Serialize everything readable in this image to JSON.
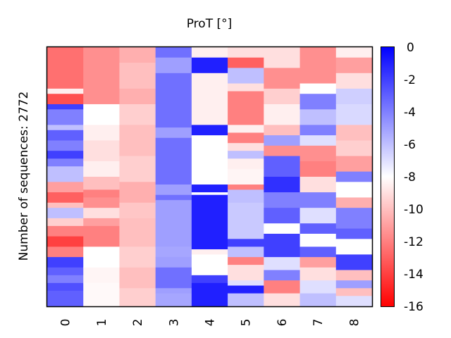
{
  "chart_data": {
    "type": "heatmap",
    "title": "ProT [°]",
    "xlabel": "",
    "ylabel": "Number of sequences: 2772",
    "x_categories": [
      "0",
      "1",
      "2",
      "3",
      "4",
      "5",
      "6",
      "7",
      "8"
    ],
    "n_rows": 2772,
    "colorbar": {
      "min": -16,
      "max": 0,
      "ticks": [
        "0",
        "-2",
        "-4",
        "-6",
        "-8",
        "-10",
        "-12",
        "-14",
        "-16"
      ],
      "tick_values": [
        0,
        -2,
        -4,
        -6,
        -8,
        -10,
        -12,
        -14,
        -16
      ],
      "colormap": "bwr_reversed",
      "low_color": "#ff0000",
      "mid_color": "#ffffff",
      "high_color": "#0000ff"
    },
    "columns": [
      {
        "name": "0",
        "segments": [
          [
            0.0,
            0.16,
            -12.5
          ],
          [
            0.16,
            0.18,
            -8.5
          ],
          [
            0.18,
            0.22,
            -13.5
          ],
          [
            0.22,
            0.24,
            -2
          ],
          [
            0.24,
            0.3,
            -4
          ],
          [
            0.3,
            0.32,
            -6
          ],
          [
            0.32,
            0.36,
            -3
          ],
          [
            0.36,
            0.4,
            -4
          ],
          [
            0.4,
            0.43,
            -2
          ],
          [
            0.43,
            0.46,
            -4
          ],
          [
            0.46,
            0.52,
            -6
          ],
          [
            0.52,
            0.56,
            -11
          ],
          [
            0.56,
            0.6,
            -13
          ],
          [
            0.6,
            0.62,
            -10
          ],
          [
            0.62,
            0.66,
            -6
          ],
          [
            0.66,
            0.69,
            -9.5
          ],
          [
            0.69,
            0.73,
            -12
          ],
          [
            0.73,
            0.77,
            -14
          ],
          [
            0.77,
            0.81,
            -12
          ],
          [
            0.81,
            0.85,
            -2
          ],
          [
            0.85,
            0.88,
            -3
          ],
          [
            0.88,
            0.91,
            -4
          ],
          [
            0.91,
            0.94,
            -2.5
          ],
          [
            0.94,
            1.0,
            -3
          ]
        ]
      },
      {
        "name": "1",
        "segments": [
          [
            0.0,
            0.22,
            -11.5
          ],
          [
            0.22,
            0.3,
            -8
          ],
          [
            0.3,
            0.36,
            -8.5
          ],
          [
            0.36,
            0.44,
            -9
          ],
          [
            0.44,
            0.5,
            -8.5
          ],
          [
            0.5,
            0.55,
            -10
          ],
          [
            0.55,
            0.58,
            -12
          ],
          [
            0.58,
            0.62,
            -11.5
          ],
          [
            0.62,
            0.66,
            -9
          ],
          [
            0.66,
            0.69,
            -11
          ],
          [
            0.69,
            0.77,
            -12
          ],
          [
            0.77,
            0.85,
            -8
          ],
          [
            0.85,
            0.91,
            -8.3
          ],
          [
            0.91,
            1.0,
            -8.2
          ]
        ]
      },
      {
        "name": "2",
        "segments": [
          [
            0.0,
            0.06,
            -10.5
          ],
          [
            0.06,
            0.16,
            -10
          ],
          [
            0.16,
            0.22,
            -10.5
          ],
          [
            0.22,
            0.3,
            -9.5
          ],
          [
            0.3,
            0.42,
            -10
          ],
          [
            0.42,
            0.52,
            -9.5
          ],
          [
            0.52,
            0.6,
            -10.5
          ],
          [
            0.6,
            0.66,
            -9.8
          ],
          [
            0.66,
            0.77,
            -10
          ],
          [
            0.77,
            0.85,
            -9.5
          ],
          [
            0.85,
            0.93,
            -10
          ],
          [
            0.93,
            1.0,
            -9.5
          ]
        ]
      },
      {
        "name": "3",
        "segments": [
          [
            0.0,
            0.04,
            -3.5
          ],
          [
            0.04,
            0.1,
            -5
          ],
          [
            0.1,
            0.31,
            -3.5
          ],
          [
            0.31,
            0.35,
            -5
          ],
          [
            0.35,
            0.53,
            -3.5
          ],
          [
            0.53,
            0.57,
            -5
          ],
          [
            0.57,
            0.59,
            -3.5
          ],
          [
            0.59,
            0.77,
            -5
          ],
          [
            0.77,
            0.81,
            -5.2
          ],
          [
            0.81,
            0.85,
            -5
          ],
          [
            0.85,
            0.93,
            -3.5
          ],
          [
            0.93,
            0.95,
            -5
          ],
          [
            0.95,
            1.0,
            -5.2
          ]
        ]
      },
      {
        "name": "4",
        "segments": [
          [
            0.0,
            0.04,
            -8.5
          ],
          [
            0.04,
            0.1,
            -1
          ],
          [
            0.1,
            0.3,
            -8.5
          ],
          [
            0.3,
            0.34,
            -1
          ],
          [
            0.34,
            0.53,
            -8
          ],
          [
            0.53,
            0.56,
            -1
          ],
          [
            0.56,
            0.57,
            -8
          ],
          [
            0.57,
            0.78,
            -1
          ],
          [
            0.78,
            0.8,
            -8.5
          ],
          [
            0.8,
            0.88,
            -8
          ],
          [
            0.88,
            0.91,
            -2
          ],
          [
            0.91,
            1.0,
            -1
          ]
        ]
      },
      {
        "name": "5",
        "segments": [
          [
            0.0,
            0.04,
            -9
          ],
          [
            0.04,
            0.08,
            -13
          ],
          [
            0.08,
            0.14,
            -6
          ],
          [
            0.14,
            0.17,
            -9
          ],
          [
            0.17,
            0.3,
            -12
          ],
          [
            0.3,
            0.33,
            -8.5
          ],
          [
            0.33,
            0.37,
            -12
          ],
          [
            0.37,
            0.4,
            -9
          ],
          [
            0.4,
            0.43,
            -6
          ],
          [
            0.43,
            0.47,
            -8.5
          ],
          [
            0.47,
            0.53,
            -8.3
          ],
          [
            0.53,
            0.55,
            -12
          ],
          [
            0.55,
            0.6,
            -6
          ],
          [
            0.6,
            0.74,
            -6.3
          ],
          [
            0.74,
            0.77,
            -2
          ],
          [
            0.77,
            0.81,
            -6
          ],
          [
            0.81,
            0.84,
            -12
          ],
          [
            0.84,
            0.9,
            -9
          ],
          [
            0.9,
            0.92,
            -7
          ],
          [
            0.92,
            0.95,
            -1
          ],
          [
            0.95,
            1.0,
            -6
          ]
        ]
      },
      {
        "name": "6",
        "segments": [
          [
            0.0,
            0.08,
            -9
          ],
          [
            0.08,
            0.16,
            -11.5
          ],
          [
            0.16,
            0.22,
            -9.5
          ],
          [
            0.22,
            0.3,
            -8.5
          ],
          [
            0.3,
            0.34,
            -10
          ],
          [
            0.34,
            0.38,
            -5
          ],
          [
            0.38,
            0.42,
            -11.5
          ],
          [
            0.42,
            0.5,
            -3
          ],
          [
            0.5,
            0.56,
            -1.5
          ],
          [
            0.56,
            0.62,
            -4
          ],
          [
            0.62,
            0.68,
            -3
          ],
          [
            0.68,
            0.72,
            -8
          ],
          [
            0.72,
            0.81,
            -2
          ],
          [
            0.81,
            0.86,
            -7
          ],
          [
            0.86,
            0.9,
            -4
          ],
          [
            0.9,
            0.95,
            -12
          ],
          [
            0.95,
            1.0,
            -9
          ]
        ]
      },
      {
        "name": "7",
        "segments": [
          [
            0.0,
            0.14,
            -11.5
          ],
          [
            0.14,
            0.18,
            -8
          ],
          [
            0.18,
            0.24,
            -4
          ],
          [
            0.24,
            0.3,
            -6
          ],
          [
            0.3,
            0.34,
            -4
          ],
          [
            0.34,
            0.38,
            -7
          ],
          [
            0.38,
            0.44,
            -11.5
          ],
          [
            0.44,
            0.5,
            -12
          ],
          [
            0.5,
            0.56,
            -9
          ],
          [
            0.56,
            0.62,
            -4
          ],
          [
            0.62,
            0.68,
            -7
          ],
          [
            0.68,
            0.72,
            -3
          ],
          [
            0.72,
            0.77,
            -8
          ],
          [
            0.77,
            0.81,
            -3
          ],
          [
            0.81,
            0.85,
            -11
          ],
          [
            0.85,
            0.9,
            -9
          ],
          [
            0.9,
            0.95,
            -7
          ],
          [
            0.95,
            1.0,
            -6
          ]
        ]
      },
      {
        "name": "8",
        "segments": [
          [
            0.0,
            0.04,
            -8.5
          ],
          [
            0.04,
            0.1,
            -11
          ],
          [
            0.1,
            0.16,
            -9
          ],
          [
            0.16,
            0.22,
            -6.5
          ],
          [
            0.22,
            0.3,
            -6.8
          ],
          [
            0.3,
            0.36,
            -10
          ],
          [
            0.36,
            0.42,
            -9.5
          ],
          [
            0.42,
            0.48,
            -11
          ],
          [
            0.48,
            0.52,
            -4
          ],
          [
            0.52,
            0.58,
            -8
          ],
          [
            0.58,
            0.62,
            -10.5
          ],
          [
            0.62,
            0.7,
            -4
          ],
          [
            0.7,
            0.74,
            -3
          ],
          [
            0.74,
            0.8,
            -8
          ],
          [
            0.8,
            0.86,
            -2
          ],
          [
            0.86,
            0.9,
            -10
          ],
          [
            0.9,
            0.93,
            -5
          ],
          [
            0.93,
            0.96,
            -10
          ],
          [
            0.96,
            1.0,
            -7
          ]
        ]
      }
    ]
  }
}
